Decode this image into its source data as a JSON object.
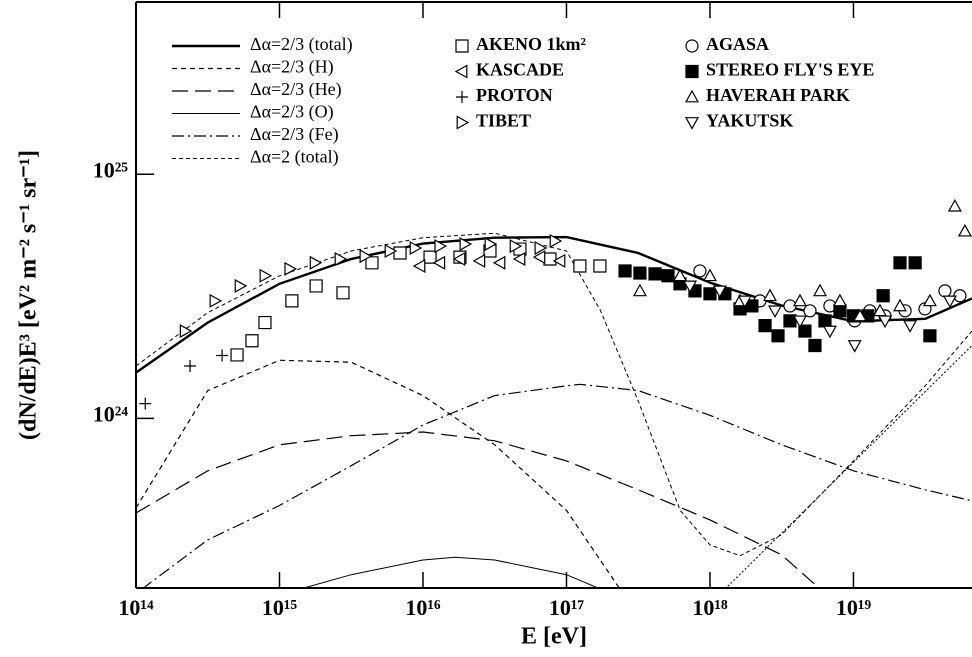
{
  "chart_data": {
    "type": "line",
    "x_label": "E [eV]",
    "y_label": "(dN/dE)E³ [eV² m⁻² s⁻¹ sr⁻¹]",
    "xscale": "log",
    "yscale": "log",
    "xlim": [
      100000000000000.0,
      6.7e+19
    ],
    "ylim": [
      2.02e+23,
      5.08e+25
    ],
    "xticks": [
      {
        "value": 100000000000000.0,
        "label": "10¹⁴"
      },
      {
        "value": 1000000000000000.0,
        "label": "10¹⁵"
      },
      {
        "value": 1e+16,
        "label": "10¹⁶"
      },
      {
        "value": 1e+17,
        "label": "10¹⁷"
      },
      {
        "value": 1e+18,
        "label": "10¹⁸"
      },
      {
        "value": 1e+19,
        "label": "10¹⁹"
      }
    ],
    "yticks": [
      {
        "value": 1e+24,
        "label": "10²⁴"
      },
      {
        "value": 1e+25,
        "label": "10²⁵"
      }
    ],
    "series": [
      {
        "name": "Δα=2/3 (total)",
        "color": "#000",
        "dash": "none",
        "width": 2.4,
        "x": [
          100000000000000.0,
          316000000000000.0,
          1000000000000000.0,
          3160000000000000.0,
          1e+16,
          3.16e+16,
          1e+17,
          3.16e+17,
          1e+18,
          3.16e+18,
          1e+19,
          3.16e+19,
          6.7e+19
        ],
        "values": [
          1.54e+24,
          2.47e+24,
          3.56e+24,
          4.5e+24,
          5.2e+24,
          5.5e+24,
          5.53e+24,
          4.76e+24,
          3.6e+24,
          2.9e+24,
          2.5e+24,
          2.56e+24,
          3.1e+24
        ]
      },
      {
        "name": "Δα=2/3 (H)",
        "color": "#000",
        "dash": "5,4",
        "width": 1.2,
        "x": [
          100000000000000.0,
          316000000000000.0,
          1000000000000000.0,
          3160000000000000.0,
          1e+16,
          3.16e+16,
          1e+17,
          2.36e+17
        ],
        "values": [
          4.3e+23,
          1.3e+24,
          1.73e+24,
          1.7e+24,
          1.24e+24,
          7.8e+23,
          4.2e+23,
          2e+23
        ]
      },
      {
        "name": "Δα=2/3 (He)",
        "color": "#000",
        "dash": "16,7",
        "width": 1.2,
        "x": [
          100000000000000.0,
          316000000000000.0,
          1000000000000000.0,
          3160000000000000.0,
          1e+16,
          3.16e+16,
          1e+17,
          3.16e+17,
          1e+18,
          3.16e+18,
          5.85e+18
        ],
        "values": [
          4.1e+23,
          6.1e+23,
          7.8e+23,
          8.5e+23,
          8.8e+23,
          8.1e+23,
          6.7e+23,
          5.1e+23,
          3.84e+23,
          2.76e+23,
          2e+23
        ]
      },
      {
        "name": "Δα=2/3 (O)",
        "color": "#000",
        "dash": "none",
        "width": 1,
        "x": [
          1390000000000000.0,
          3160000000000000.0,
          1e+16,
          1.67e+16,
          3.16e+16,
          1e+17,
          1.73e+17
        ],
        "values": [
          2e+23,
          2.29e+23,
          2.63e+23,
          2.7e+23,
          2.63e+23,
          2.29e+23,
          2e+23
        ]
      },
      {
        "name": "Δα=2/3 (Fe)",
        "color": "#000",
        "dash": "12,4,2,4",
        "width": 1.2,
        "x": [
          110000000000000.0,
          316000000000000.0,
          1000000000000000.0,
          3160000000000000.0,
          1e+16,
          3.16e+16,
          1e+17,
          1.24e+17,
          3.16e+17,
          1e+18,
          3.16e+18,
          1e+19,
          3.16e+19,
          6.7e+19
        ],
        "values": [
          2e+23,
          3.18e+23,
          4.4e+23,
          6.4e+23,
          9.4e+23,
          1.24e+24,
          1.36e+24,
          1.38e+24,
          1.3e+24,
          1.03e+24,
          7.8e+23,
          6.1e+23,
          5.1e+23,
          4.6e+23
        ]
      },
      {
        "name": "Δα=2 (total)",
        "color": "#000",
        "dash": "4,3",
        "width": 1,
        "x": [
          100000000000000.0,
          316000000000000.0,
          1000000000000000.0,
          3160000000000000.0,
          1e+16,
          3.16e+16,
          1e+17,
          1.73e+17,
          3.16e+17,
          6.2e+17,
          1e+18,
          1.62e+18,
          3.16e+18,
          1e+19,
          3.16e+19,
          6.7e+19
        ],
        "values": [
          1.64e+24,
          2.71e+24,
          3.84e+24,
          4.85e+24,
          5.5e+24,
          5.74e+24,
          4.85e+24,
          2.76e+24,
          1.18e+24,
          4.2e+23,
          3.03e+23,
          2.74e+23,
          3.34e+23,
          6.7e+23,
          1.36e+24,
          2.28e+24
        ]
      },
      {
        "color": "#000",
        "dash": "2,2",
        "width": 1,
        "x": [
          1.27e+18,
          6.7e+19
        ],
        "values": [
          2e+23,
          1.99e+24
        ]
      },
      {
        "name": "AKENO 1km²",
        "color": "#000",
        "marker": "square-open",
        "x": [
          506000000000000.0,
          643000000000000.0,
          792000000000000.0,
          1220000000000000.0,
          1800000000000000.0,
          2770000000000000.0,
          4410000000000000.0,
          6920000000000000.0,
          1.12e+16,
          1.81e+16,
          2.93e+16,
          4.74e+16,
          7.67e+16,
          1.24e+17,
          1.71e+17
        ],
        "values": [
          1.82e+24,
          2.08e+24,
          2.47e+24,
          3.03e+24,
          3.49e+24,
          3.27e+24,
          4.34e+24,
          4.76e+24,
          4.58e+24,
          4.58e+24,
          4.85e+24,
          4.94e+24,
          4.5e+24,
          4.21e+24,
          4.21e+24
        ]
      },
      {
        "name": "KASCADE",
        "color": "#000",
        "marker": "tri-left",
        "x": [
          9530000000000000.0,
          1.31e+16,
          1.81e+16,
          2.49e+16,
          3.44e+16,
          4.74e+16,
          6.53e+16,
          9.01e+16
        ],
        "values": [
          4.21e+24,
          4.34e+24,
          4.5e+24,
          4.42e+24,
          4.34e+24,
          4.5e+24,
          4.58e+24,
          4.42e+24
        ]
      },
      {
        "name": "PROTON",
        "color": "#000",
        "marker": "plus",
        "x": [
          116000000000000.0,
          238000000000000.0,
          398000000000000.0
        ],
        "values": [
          1.15e+24,
          1.64e+24,
          1.81e+24
        ]
      },
      {
        "name": "TIBET",
        "color": "#000",
        "marker": "tri-right",
        "x": [
          220000000000000.0,
          355000000000000.0,
          531000000000000.0,
          792000000000000.0,
          1180000000000000.0,
          1770000000000000.0,
          2640000000000000.0,
          3940000000000000.0,
          5890000000000000.0,
          8800000000000000.0,
          1.31e+16,
          1.96e+16,
          2.93e+16,
          4.38e+16,
          6.53e+16,
          8.32e+16
        ],
        "values": [
          2.28e+24,
          3.03e+24,
          3.49e+24,
          3.84e+24,
          4.1e+24,
          4.34e+24,
          4.5e+24,
          4.62e+24,
          4.85e+24,
          4.99e+24,
          5.08e+24,
          5.18e+24,
          5.18e+24,
          5.08e+24,
          4.99e+24,
          5.33e+24
        ]
      },
      {
        "name": "AGASA",
        "color": "#000",
        "marker": "circle-open",
        "x": [
          8.51e+17,
          2.23e+18,
          3.61e+18,
          4.98e+18,
          6.85e+18,
          1.02e+19,
          1.3e+19,
          1.66e+19,
          2.29e+19,
          3.15e+19,
          4.34e+19,
          5.52e+19
        ],
        "values": [
          4.02e+24,
          3.03e+24,
          2.89e+24,
          2.76e+24,
          2.89e+24,
          2.51e+24,
          2.76e+24,
          2.63e+24,
          2.76e+24,
          2.81e+24,
          3.33e+24,
          3.18e+24
        ]
      },
      {
        "name": "STEREO FLY'S EYE",
        "color": "#000",
        "marker": "square-filled",
        "x": [
          2.56e+17,
          3.25e+17,
          4.14e+17,
          5.1e+17,
          6.18e+17,
          7.86e+17,
          1e+18,
          1.27e+18,
          1.62e+18,
          1.96e+18,
          2.42e+18,
          2.98e+18,
          3.61e+18,
          4.59e+18,
          5.39e+18,
          6.33e+18,
          8.05e+18,
          1e+19,
          1.26e+19,
          1.61e+19,
          2.11e+19,
          2.69e+19,
          3.41e+19
        ],
        "values": [
          4.02e+24,
          3.94e+24,
          3.91e+24,
          3.84e+24,
          3.56e+24,
          3.33e+24,
          3.24e+24,
          3.24e+24,
          2.81e+24,
          2.89e+24,
          2.4e+24,
          2.18e+24,
          2.51e+24,
          2.28e+24,
          1.99e+24,
          2.51e+24,
          2.76e+24,
          2.63e+24,
          2.63e+24,
          3.18e+24,
          4.34e+24,
          4.34e+24,
          2.18e+24
        ]
      },
      {
        "name": "HAVERAH PARK",
        "color": "#000",
        "marker": "tri-up",
        "x": [
          3.25e+17,
          6.18e+17,
          1e+18,
          1.62e+18,
          2.62e+18,
          4.24e+18,
          5.85e+18,
          8.05e+18,
          1.11e+19,
          1.53e+19,
          2.11e+19,
          3.41e+19,
          5.09e+19,
          5.98e+19
        ],
        "values": [
          3.33e+24,
          3.84e+24,
          3.84e+24,
          3.03e+24,
          3.18e+24,
          3.03e+24,
          3.33e+24,
          3.03e+24,
          2.63e+24,
          2.76e+24,
          2.89e+24,
          3.03e+24,
          7.4e+24,
          5.85e+24
        ]
      },
      {
        "name": "YAKUTSK",
        "color": "#000",
        "marker": "tri-down",
        "x": [
          7.26e+17,
          1.17e+18,
          1.75e+18,
          2.84e+18,
          4.24e+18,
          6.85e+18,
          1.02e+19,
          1.66e+19,
          2.48e+19,
          4.7e+19
        ],
        "values": [
          3.49e+24,
          3.33e+24,
          3.03e+24,
          2.76e+24,
          2.51e+24,
          2.28e+24,
          1.99e+24,
          2.51e+24,
          2.4e+24,
          3.03e+24
        ]
      }
    ]
  }
}
